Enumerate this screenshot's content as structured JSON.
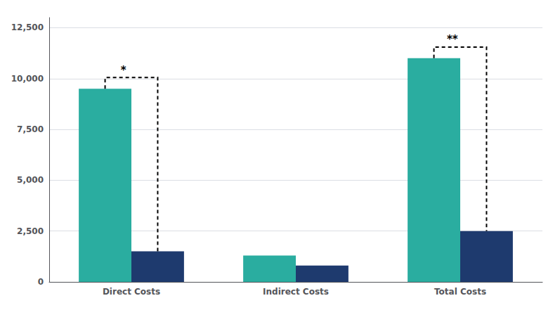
{
  "chart_data": {
    "type": "bar",
    "categories": [
      "Direct Costs",
      "Indirect Costs",
      "Total Costs"
    ],
    "series": [
      {
        "color": "#2aada0",
        "values": [
          9500,
          1300,
          11000
        ]
      },
      {
        "color": "#1e3a6e",
        "values": [
          1500,
          800,
          2500
        ]
      }
    ],
    "ylim": [
      0,
      13000
    ],
    "yticks": [
      0,
      {
        "value": 2500,
        "label": "2,500"
      },
      {
        "value": 5000,
        "label": "5,000"
      },
      {
        "value": 7500,
        "label": "7,500"
      },
      {
        "value": 10000,
        "label": "10,000"
      },
      {
        "value": 12500,
        "label": "12,500"
      }
    ],
    "grid": true,
    "annotations": [
      {
        "text": "*",
        "category": "Direct Costs",
        "y": 10050
      },
      {
        "text": "**",
        "category": "Total Costs",
        "y": 11550
      }
    ]
  }
}
